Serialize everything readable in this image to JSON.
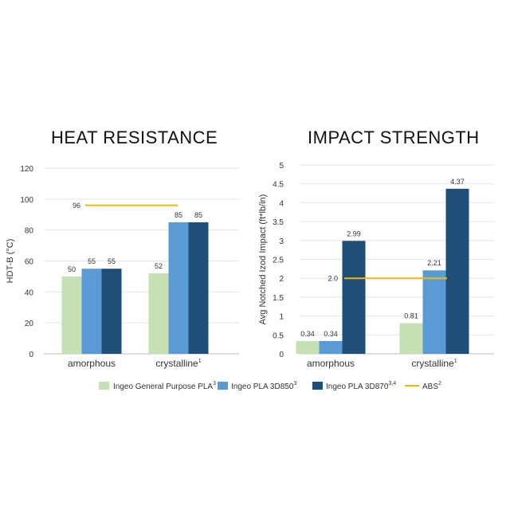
{
  "chart_data": [
    {
      "type": "bar",
      "title": "HEAT RESISTANCE",
      "ylabel": "HDT-B (°C)",
      "ylim": [
        0,
        120
      ],
      "yticks": [
        0,
        20,
        40,
        60,
        80,
        100,
        120
      ],
      "grid": true,
      "categories": [
        {
          "label": "amorphous",
          "sup": ""
        },
        {
          "label": "crystalline",
          "sup": "1"
        }
      ],
      "series": [
        {
          "name": "Ingeo General Purpose PLA",
          "sup": "3",
          "color": "#c5e0b3",
          "values": [
            50,
            52
          ],
          "labels": [
            "50",
            "52"
          ]
        },
        {
          "name": "Ingeo PLA 3D850",
          "sup": "3",
          "color": "#5b9bd5",
          "values": [
            55,
            85
          ],
          "labels": [
            "55",
            "85"
          ]
        },
        {
          "name": "Ingeo PLA 3D870",
          "sup": "3,4",
          "color": "#1f4e79",
          "values": [
            55,
            85
          ],
          "labels": [
            "55",
            "85"
          ]
        }
      ],
      "reference": {
        "name": "ABS",
        "value": 96,
        "label": "96",
        "color": "#f5b800"
      }
    },
    {
      "type": "bar",
      "title": "IMPACT STRENGTH",
      "ylabel": "Avg Notched Izod Impact (ft*lb/in)",
      "ylim": [
        0,
        5
      ],
      "yticks": [
        0,
        0.5,
        1,
        1.5,
        2,
        2.5,
        3,
        3.5,
        4,
        4.5,
        5
      ],
      "ytick_labels": [
        "0",
        "0.5",
        "1",
        "1.5",
        "2",
        "2.5",
        "3",
        "3.5",
        "4",
        "4.5",
        "5"
      ],
      "grid": true,
      "categories": [
        {
          "label": "amorphous",
          "sup": ""
        },
        {
          "label": "crystalline",
          "sup": "1"
        }
      ],
      "series": [
        {
          "name": "Ingeo General Purpose PLA",
          "sup": "3",
          "color": "#c5e0b3",
          "values": [
            0.34,
            0.81
          ],
          "labels": [
            "0.34",
            "0.81"
          ]
        },
        {
          "name": "Ingeo PLA 3D850",
          "sup": "3",
          "color": "#5b9bd5",
          "values": [
            0.34,
            2.21
          ],
          "labels": [
            "0.34",
            "2.21"
          ]
        },
        {
          "name": "Ingeo PLA 3D870",
          "sup": "3,4",
          "color": "#1f4e79",
          "values": [
            2.99,
            4.37
          ],
          "labels": [
            "2.99",
            "4.37"
          ]
        }
      ],
      "reference": {
        "name": "ABS",
        "value": 2.0,
        "label": "2.0",
        "color": "#f5b800"
      }
    }
  ],
  "legend": [
    {
      "name": "Ingeo General Purpose PLA",
      "sup": "3",
      "color": "#c5e0b3",
      "kind": "box"
    },
    {
      "name": "Ingeo PLA 3D850",
      "sup": "3",
      "color": "#5b9bd5",
      "kind": "box"
    },
    {
      "name": "Ingeo PLA 3D870",
      "sup": "3,4",
      "color": "#1f4e79",
      "kind": "box"
    },
    {
      "name": "ABS",
      "sup": "2",
      "color": "#f5b800",
      "kind": "line"
    }
  ]
}
